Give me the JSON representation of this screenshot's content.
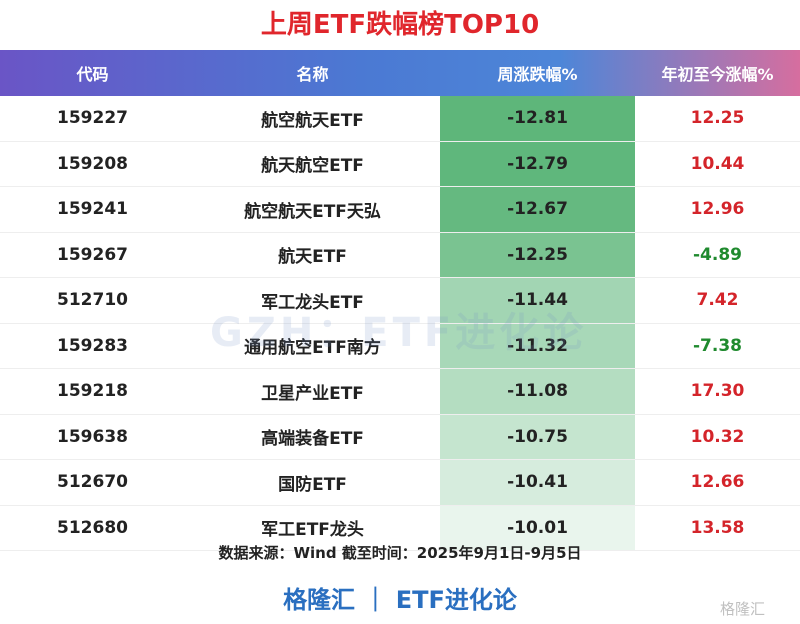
{
  "title": "上周ETF跌幅榜TOP10",
  "table": {
    "header": [
      "代码",
      "名称",
      "周涨跌幅%",
      "年初至今涨幅%"
    ],
    "rows": [
      [
        "159227",
        "航空航天ETF",
        "-12.81",
        "12.25"
      ],
      [
        "159208",
        "航天航空ETF",
        "-12.79",
        "10.44"
      ],
      [
        "159241",
        "航空航天ETF天弘",
        "-12.67",
        "12.96"
      ],
      [
        "159267",
        "航天ETF",
        "-12.25",
        "-4.89"
      ],
      [
        "512710",
        "军工龙头ETF",
        "-11.44",
        "7.42"
      ],
      [
        "159283",
        "通用航空ETF南方",
        "-11.32",
        "-7.38"
      ],
      [
        "159218",
        "卫星产业ETF",
        "-11.08",
        "17.30"
      ],
      [
        "159638",
        "高端装备ETF",
        "-10.75",
        "10.32"
      ],
      [
        "512670",
        "国防ETF",
        "-10.41",
        "12.66"
      ],
      [
        "512680",
        "军工ETF龙头",
        "-10.01",
        "13.58"
      ]
    ]
  },
  "source": "数据来源：Wind 截至时间：2025年9月1日-9月5日",
  "brand": "格隆汇 ｜ ETF进化论",
  "watermark": "GZH：ETF进化论",
  "logo": "格隆汇"
}
